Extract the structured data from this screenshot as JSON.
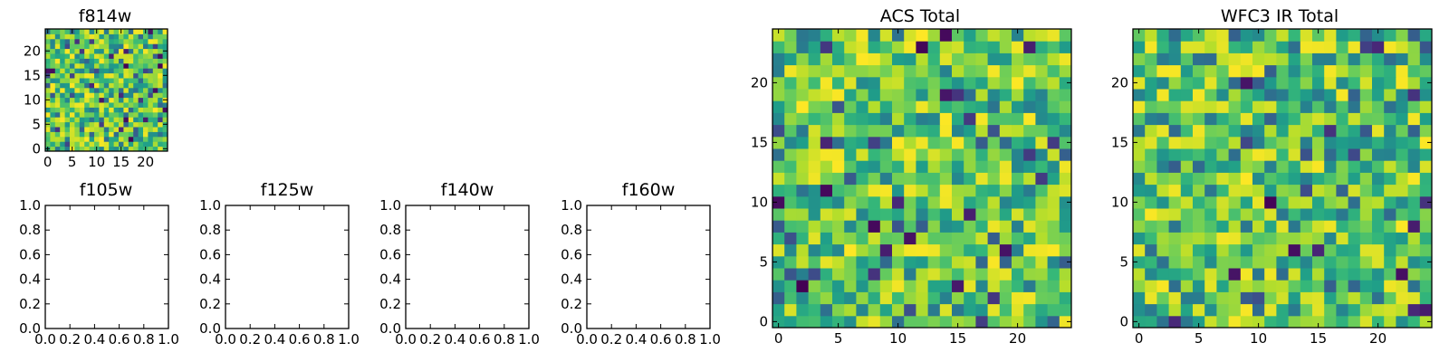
{
  "chart_data": [
    {
      "type": "heatmap",
      "title": "f814w",
      "grid_size": 25,
      "xlim": [
        0,
        24
      ],
      "ylim": [
        0,
        24
      ],
      "xticks": [
        "0",
        "5",
        "10",
        "15",
        "20"
      ],
      "yticks": [
        "0",
        "5",
        "10",
        "15",
        "20"
      ],
      "colormap": "viridis",
      "values_note": "random noise",
      "seed": 7
    },
    {
      "type": "empty",
      "title": "f105w",
      "xlim": [
        0,
        1
      ],
      "ylim": [
        0,
        1
      ],
      "xticks": [
        "0.0",
        "0.2",
        "0.4",
        "0.6",
        "0.8",
        "1.0"
      ],
      "yticks": [
        "0.0",
        "0.2",
        "0.4",
        "0.6",
        "0.8",
        "1.0"
      ]
    },
    {
      "type": "empty",
      "title": "f125w",
      "xlim": [
        0,
        1
      ],
      "ylim": [
        0,
        1
      ],
      "xticks": [
        "0.0",
        "0.2",
        "0.4",
        "0.6",
        "0.8",
        "1.0"
      ],
      "yticks": [
        "0.0",
        "0.2",
        "0.4",
        "0.6",
        "0.8",
        "1.0"
      ]
    },
    {
      "type": "empty",
      "title": "f140w",
      "xlim": [
        0,
        1
      ],
      "ylim": [
        0,
        1
      ],
      "xticks": [
        "0.0",
        "0.2",
        "0.4",
        "0.6",
        "0.8",
        "1.0"
      ],
      "yticks": [
        "0.0",
        "0.2",
        "0.4",
        "0.6",
        "0.8",
        "1.0"
      ]
    },
    {
      "type": "empty",
      "title": "f160w",
      "xlim": [
        0,
        1
      ],
      "ylim": [
        0,
        1
      ],
      "xticks": [
        "0.0",
        "0.2",
        "0.4",
        "0.6",
        "0.8",
        "1.0"
      ],
      "yticks": [
        "0.0",
        "0.2",
        "0.4",
        "0.6",
        "0.8",
        "1.0"
      ]
    },
    {
      "type": "heatmap",
      "title": "ACS Total",
      "grid_size": 25,
      "xlim": [
        0,
        24
      ],
      "ylim": [
        0,
        24
      ],
      "xticks": [
        "0",
        "5",
        "10",
        "15",
        "20"
      ],
      "yticks": [
        "0",
        "5",
        "10",
        "15",
        "20"
      ],
      "colormap": "viridis",
      "values_note": "random noise",
      "seed": 21
    },
    {
      "type": "heatmap",
      "title": "WFC3 IR Total",
      "grid_size": 25,
      "xlim": [
        0,
        24
      ],
      "ylim": [
        0,
        24
      ],
      "xticks": [
        "0",
        "5",
        "10",
        "15",
        "20"
      ],
      "yticks": [
        "0",
        "5",
        "10",
        "15",
        "20"
      ],
      "colormap": "viridis",
      "values_note": "random noise",
      "seed": 43
    }
  ]
}
